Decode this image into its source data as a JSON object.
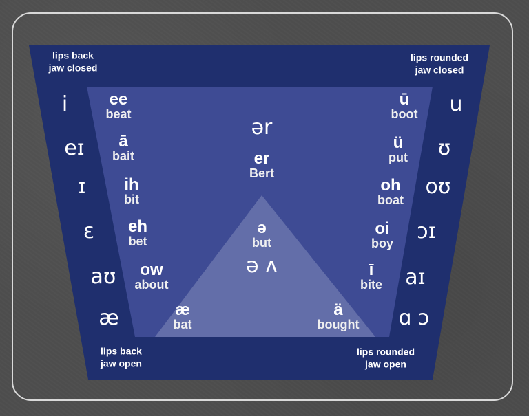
{
  "colors": {
    "slide_bg": "#4d4d4d",
    "outer_trapezoid": "#1f2f6e",
    "inner_trapezoid": "#3e4b94",
    "triangle": "#6a74ad",
    "text": "#ffffff"
  },
  "corners": {
    "top_left": [
      "lips back",
      "jaw closed"
    ],
    "top_right": [
      "lips rounded",
      "jaw closed"
    ],
    "bottom_left": [
      "lips back",
      "jaw open"
    ],
    "bottom_right": [
      "lips rounded",
      "jaw open"
    ]
  },
  "left_ipa": [
    "i",
    "eɪ",
    "ɪ",
    "ɛ",
    "aʊ",
    "æ"
  ],
  "right_ipa": [
    "u",
    "ʊ",
    "oʊ",
    "ɔɪ",
    "aɪ",
    "ɑ ɔ"
  ],
  "left_keys": [
    {
      "key": "ee",
      "example": "beat"
    },
    {
      "key": "ā",
      "example": "bait"
    },
    {
      "key": "ih",
      "example": "bit"
    },
    {
      "key": "eh",
      "example": "bet"
    },
    {
      "key": "ow",
      "example": "about"
    }
  ],
  "right_keys": [
    {
      "key": "ū",
      "example": "boot"
    },
    {
      "key": "ü",
      "example": "put"
    },
    {
      "key": "oh",
      "example": "boat"
    },
    {
      "key": "oi",
      "example": "boy"
    },
    {
      "key": "ī",
      "example": "bite"
    }
  ],
  "center_r": {
    "ipa": "ər",
    "key": "er",
    "example": "Bert"
  },
  "center_schwa": {
    "key": "ə",
    "example": "but",
    "ipa": "ə ʌ"
  },
  "bottom_left_key": {
    "key": "æ",
    "example": "bat"
  },
  "bottom_right_key": {
    "key": "ä",
    "example": "bought"
  }
}
